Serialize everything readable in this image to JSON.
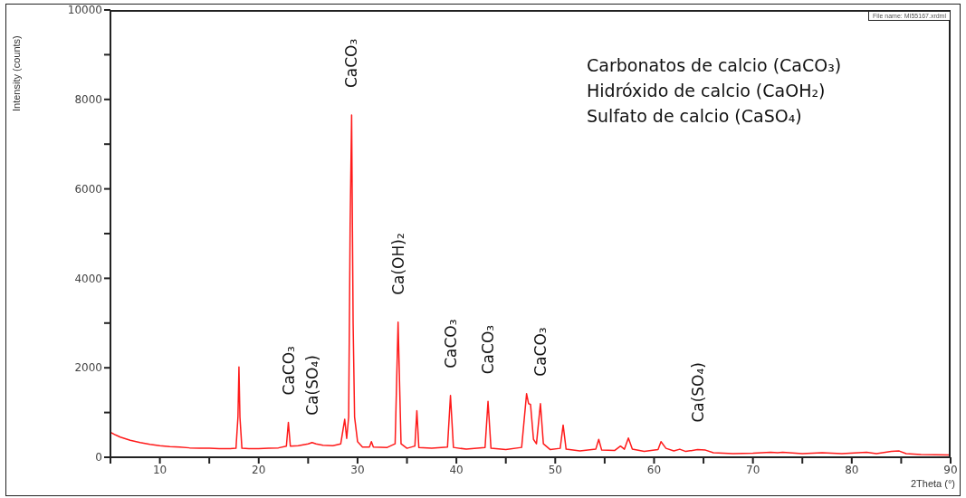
{
  "chart_data": {
    "type": "line",
    "xlabel": "2Theta (°)",
    "ylabel": "Intensity (counts)",
    "color": "#ff1a1a",
    "marker": "none",
    "xlim": [
      5,
      90
    ],
    "xticks": [
      {
        "value": 5,
        "label": null
      },
      10,
      {
        "value": 15,
        "label": null
      },
      20,
      {
        "value": 25,
        "label": null
      },
      30,
      {
        "value": 35,
        "label": null
      },
      40,
      {
        "value": 45,
        "label": null
      },
      50,
      {
        "value": 55,
        "label": null
      },
      60,
      {
        "value": 65,
        "label": null
      },
      70,
      {
        "value": 75,
        "label": null
      },
      80,
      {
        "value": 85,
        "label": null
      },
      90
    ],
    "ylim": [
      0,
      10000
    ],
    "yticks": [
      0,
      {
        "value": 1000,
        "label": null
      },
      2000,
      {
        "value": 3000,
        "label": null
      },
      4000,
      {
        "value": 5000,
        "label": null
      },
      6000,
      {
        "value": 7000,
        "label": null
      },
      8000,
      {
        "value": 9000,
        "label": null
      },
      10000
    ],
    "x": [
      5,
      5.5,
      6,
      7,
      8,
      9,
      10,
      11,
      12,
      13,
      14,
      15,
      16,
      17,
      17.7,
      17.9,
      18,
      18.1,
      18.3,
      19,
      20,
      21,
      22,
      22.8,
      23,
      23.2,
      24,
      25,
      25.4,
      25.8,
      26.5,
      27.5,
      28.3,
      28.7,
      28.9,
      29.1,
      29.25,
      29.4,
      29.55,
      29.7,
      30,
      30.5,
      31.2,
      31.4,
      31.6,
      33,
      33.8,
      34.1,
      34.4,
      35,
      35.8,
      36,
      36.2,
      37.5,
      39.1,
      39.4,
      39.7,
      41,
      42.9,
      43.2,
      43.5,
      45,
      46.6,
      47.1,
      47.3,
      47.5,
      47.8,
      48.1,
      48.5,
      48.8,
      49.5,
      50.5,
      50.8,
      51.1,
      52.5,
      54.1,
      54.4,
      54.7,
      56,
      56.6,
      57,
      57.4,
      57.8,
      59,
      60.4,
      60.7,
      61.2,
      62,
      62.6,
      63.2,
      64.4,
      65.2,
      66,
      68,
      70,
      71.8,
      72.5,
      73,
      75,
      77,
      79,
      81.5,
      82.5,
      84,
      84.8,
      85.5,
      87,
      90
    ],
    "values": [
      560,
      500,
      450,
      380,
      330,
      290,
      260,
      240,
      230,
      210,
      200,
      200,
      190,
      190,
      200,
      900,
      2020,
      900,
      200,
      190,
      190,
      200,
      210,
      250,
      780,
      250,
      260,
      300,
      330,
      300,
      270,
      260,
      300,
      850,
      420,
      900,
      5200,
      7650,
      3000,
      900,
      350,
      230,
      230,
      350,
      230,
      220,
      300,
      3020,
      300,
      200,
      250,
      1040,
      220,
      200,
      230,
      1380,
      220,
      180,
      220,
      1250,
      200,
      170,
      220,
      1420,
      1200,
      1180,
      400,
      300,
      1200,
      300,
      170,
      200,
      720,
      180,
      140,
      180,
      400,
      160,
      150,
      250,
      180,
      430,
      180,
      130,
      170,
      350,
      200,
      140,
      180,
      130,
      170,
      160,
      100,
      80,
      90,
      110,
      100,
      110,
      80,
      100,
      80,
      110,
      80,
      130,
      140,
      80,
      60,
      50
    ],
    "annotations": [
      {
        "text": "CaCO₃",
        "x": 23,
        "y": 780
      },
      {
        "text": "Ca(SO₄)",
        "x": 25.4,
        "y": 330
      },
      {
        "text": "CaCO₃",
        "x": 29.4,
        "y": 7650
      },
      {
        "text": "Ca(OH)₂",
        "x": 34.1,
        "y": 3020
      },
      {
        "text": "CaCO₃",
        "x": 39.4,
        "y": 1380
      },
      {
        "text": "CaCO₃",
        "x": 43.2,
        "y": 1250
      },
      {
        "text": "CaCO₃",
        "x": 48.5,
        "y": 1200
      },
      {
        "text": "Ca(SO₄)",
        "x": 64.4,
        "y": 170
      },
      "Carbonatos de calcio (CaCO₃)",
      "Hidróxido de calcio (CaOH₂)",
      "Sulfato de calcio (CaSO₄)",
      "File name: MI55167.xrdml"
    ]
  }
}
